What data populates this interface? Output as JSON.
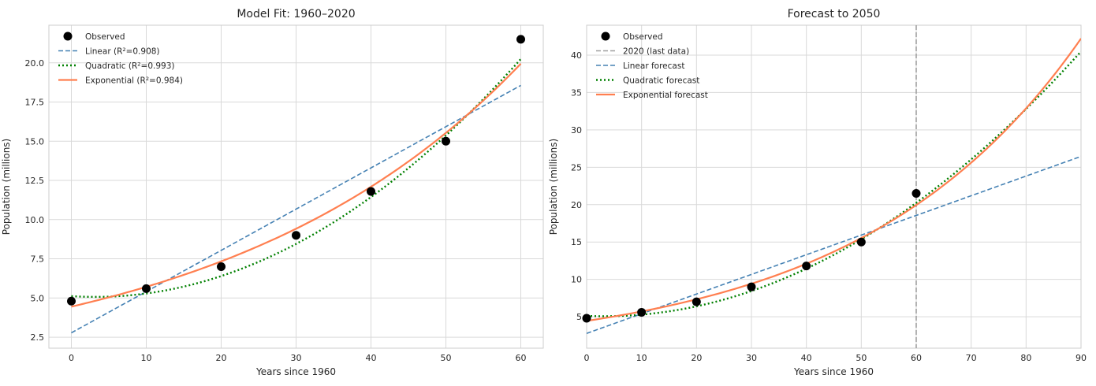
{
  "chart_data": [
    {
      "type": "line",
      "title": "Model Fit: 1960–2020",
      "xlabel": "Years since 1960",
      "ylabel": "Population (millions)",
      "xlim": [
        -3,
        63
      ],
      "ylim": [
        1.8,
        22.4
      ],
      "xticks": [
        0,
        10,
        20,
        30,
        40,
        50,
        60
      ],
      "yticks": [
        2.5,
        5.0,
        7.5,
        10.0,
        12.5,
        15.0,
        17.5,
        20.0
      ],
      "ytick_labels": [
        "2.5",
        "5.0",
        "7.5",
        "10.0",
        "12.5",
        "15.0",
        "17.5",
        "20.0"
      ],
      "grid": true,
      "legend": "top-left",
      "observed": {
        "name": "Observed",
        "x": [
          0,
          10,
          20,
          30,
          40,
          50,
          60
        ],
        "y": [
          4.8,
          5.6,
          7.0,
          9.0,
          11.8,
          15.0,
          21.5
        ]
      },
      "series": [
        {
          "name": "Linear (R²=0.908)",
          "model": "linear",
          "color": "#4682b4",
          "params": [
            2.78,
            0.263
          ]
        },
        {
          "name": "Quadratic (R²=0.993)",
          "model": "quadratic",
          "color": "#008000",
          "params": [
            5.12,
            -0.03,
            0.0047
          ]
        },
        {
          "name": "Exponential (R²=0.984)",
          "model": "exponential",
          "color": "#ff7f50",
          "params": [
            4.45,
            0.025
          ]
        }
      ],
      "x_range": [
        0,
        60
      ]
    },
    {
      "type": "line",
      "title": "Forecast to 2050",
      "xlabel": "Years since 1960",
      "ylabel": "Population (millions)",
      "xlim": [
        0,
        90
      ],
      "ylim": [
        0.8,
        44
      ],
      "xticks": [
        0,
        10,
        20,
        30,
        40,
        50,
        60,
        70,
        80,
        90
      ],
      "yticks": [
        5,
        10,
        15,
        20,
        25,
        30,
        35,
        40
      ],
      "ytick_labels": [
        "5",
        "10",
        "15",
        "20",
        "25",
        "30",
        "35",
        "40"
      ],
      "grid": true,
      "legend": "top-left",
      "observed": {
        "name": "Observed",
        "x": [
          0,
          10,
          20,
          30,
          40,
          50,
          60
        ],
        "y": [
          4.8,
          5.6,
          7.0,
          9.0,
          11.8,
          15.0,
          21.5
        ]
      },
      "vline": {
        "name": "2020 (last data)",
        "x": 60,
        "color": "#a0a0a0"
      },
      "series": [
        {
          "name": "Linear forecast",
          "model": "linear",
          "color": "#4682b4",
          "params": [
            2.78,
            0.263
          ]
        },
        {
          "name": "Quadratic forecast",
          "model": "quadratic",
          "color": "#008000",
          "params": [
            5.12,
            -0.03,
            0.0047
          ]
        },
        {
          "name": "Exponential forecast",
          "model": "exponential",
          "color": "#ff7f50",
          "params": [
            4.45,
            0.025
          ]
        }
      ],
      "x_range": [
        0,
        90
      ]
    }
  ]
}
